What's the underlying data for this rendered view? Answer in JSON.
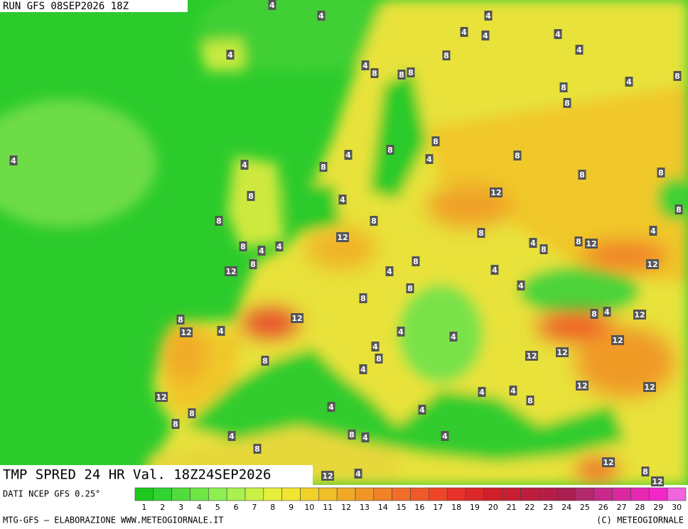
{
  "header": {
    "run": "RUN GFS 08SEP2026 18Z",
    "title": "TMP SPRED 24 HR Val. 18Z24SEP2026",
    "source": "DATI NCEP GFS 0.25°",
    "credit_left": "MTG-GFS — ELABORAZIONE WWW.METEOGIORNALE.IT",
    "credit_right": "(C) METEOGIORNALE"
  },
  "legend": {
    "labels": [
      1,
      2,
      3,
      4,
      5,
      6,
      7,
      8,
      9,
      10,
      11,
      12,
      13,
      14,
      15,
      16,
      17,
      18,
      19,
      20,
      21,
      22,
      23,
      24,
      25,
      26,
      27,
      28,
      29,
      30
    ],
    "colors": [
      "#1ec81e",
      "#32d232",
      "#50dc3c",
      "#6ee646",
      "#8cf050",
      "#aaf050",
      "#c8f046",
      "#e6f03c",
      "#f0e632",
      "#f0d228",
      "#f0be28",
      "#f0aa28",
      "#f09628",
      "#f08228",
      "#f06e28",
      "#f05a28",
      "#f04628",
      "#e63228",
      "#dc2828",
      "#d21e28",
      "#c81e32",
      "#be1e3c",
      "#b41e46",
      "#aa1e50",
      "#b4286e",
      "#c8288c",
      "#dc28a0",
      "#e628b4",
      "#f028c8",
      "#f064dc"
    ]
  },
  "map": {
    "contour_labels": [
      4,
      4,
      4,
      4,
      4,
      4,
      4,
      4,
      8,
      4,
      8,
      8,
      8,
      8,
      4,
      8,
      8,
      4,
      8,
      4,
      8,
      8,
      4,
      8,
      4,
      8,
      8,
      12,
      8,
      4,
      8,
      8,
      8,
      12,
      8,
      4,
      4,
      8,
      8,
      4,
      4,
      8,
      12,
      8,
      12,
      8,
      12,
      4,
      4,
      8,
      4,
      8,
      12,
      8,
      12,
      4,
      8,
      4,
      12,
      4,
      4,
      12,
      4,
      12,
      12,
      8,
      8,
      4,
      12,
      12,
      12,
      4,
      4,
      8,
      4,
      4,
      8,
      8,
      4,
      8,
      4,
      4,
      8,
      12,
      12,
      4,
      8,
      12
    ]
  }
}
